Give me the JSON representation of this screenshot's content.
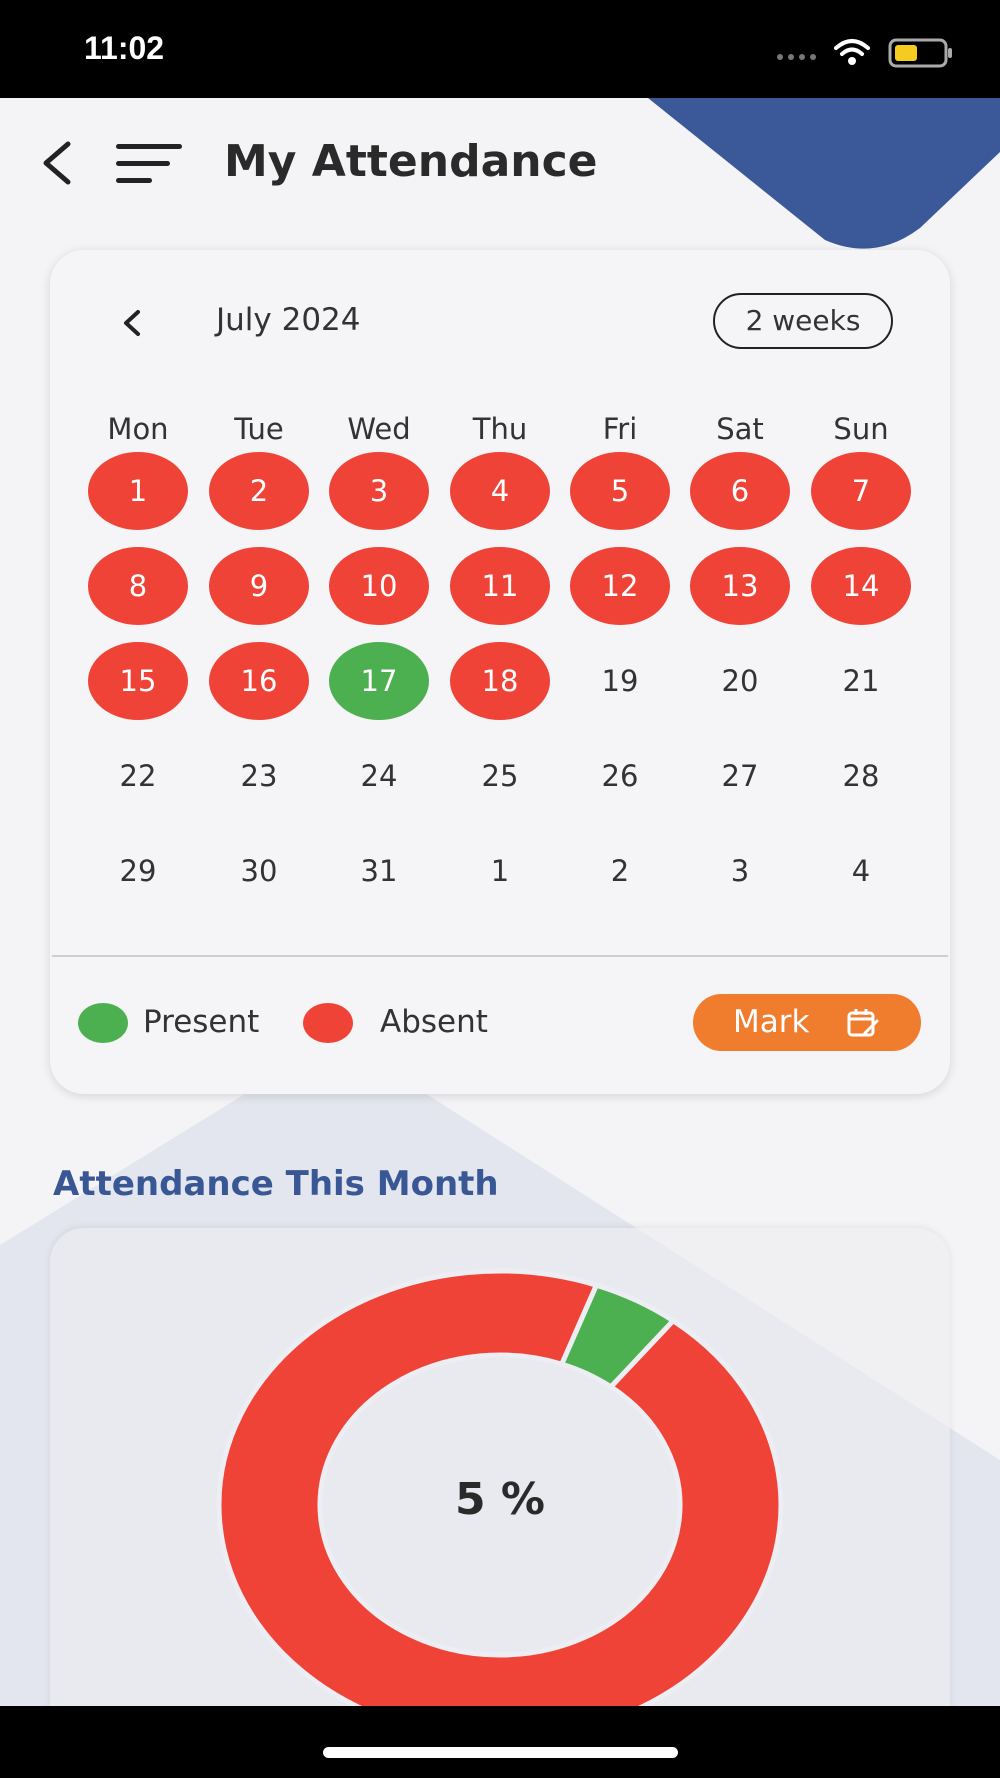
{
  "status_bar": {
    "time": "11:02"
  },
  "header": {
    "title": "My Attendance"
  },
  "calendar": {
    "month_label": "July 2024",
    "range_toggle": "2 weeks",
    "weekdays": [
      "Mon",
      "Tue",
      "Wed",
      "Thu",
      "Fri",
      "Sat",
      "Sun"
    ],
    "weeks": [
      [
        {
          "day": "1",
          "status": "absent"
        },
        {
          "day": "2",
          "status": "absent"
        },
        {
          "day": "3",
          "status": "absent"
        },
        {
          "day": "4",
          "status": "absent"
        },
        {
          "day": "5",
          "status": "absent"
        },
        {
          "day": "6",
          "status": "absent"
        },
        {
          "day": "7",
          "status": "absent"
        }
      ],
      [
        {
          "day": "8",
          "status": "absent"
        },
        {
          "day": "9",
          "status": "absent"
        },
        {
          "day": "10",
          "status": "absent"
        },
        {
          "day": "11",
          "status": "absent"
        },
        {
          "day": "12",
          "status": "absent"
        },
        {
          "day": "13",
          "status": "absent"
        },
        {
          "day": "14",
          "status": "absent"
        }
      ],
      [
        {
          "day": "15",
          "status": "absent"
        },
        {
          "day": "16",
          "status": "absent"
        },
        {
          "day": "17",
          "status": "present"
        },
        {
          "day": "18",
          "status": "absent"
        },
        {
          "day": "19",
          "status": "none"
        },
        {
          "day": "20",
          "status": "none"
        },
        {
          "day": "21",
          "status": "none"
        }
      ],
      [
        {
          "day": "22",
          "status": "none"
        },
        {
          "day": "23",
          "status": "none"
        },
        {
          "day": "24",
          "status": "none"
        },
        {
          "day": "25",
          "status": "none"
        },
        {
          "day": "26",
          "status": "none"
        },
        {
          "day": "27",
          "status": "none"
        },
        {
          "day": "28",
          "status": "none"
        }
      ],
      [
        {
          "day": "29",
          "status": "none"
        },
        {
          "day": "30",
          "status": "none"
        },
        {
          "day": "31",
          "status": "none"
        },
        {
          "day": "1",
          "status": "none"
        },
        {
          "day": "2",
          "status": "none"
        },
        {
          "day": "3",
          "status": "none"
        },
        {
          "day": "4",
          "status": "none"
        }
      ]
    ],
    "legend": [
      {
        "label": "Present",
        "color": "#4caf50"
      },
      {
        "label": "Absent",
        "color": "#f04338"
      }
    ],
    "mark_label": "Mark"
  },
  "attendance_section": {
    "title": "Attendance This Month",
    "center_label": "5 %"
  },
  "chart_data": {
    "type": "pie",
    "slices": [
      {
        "name": "Present",
        "value": 5,
        "color": "#4caf50"
      },
      {
        "name": "Absent",
        "value": 95,
        "color": "#f04338"
      }
    ]
  },
  "colors": {
    "accent_blue": "#3a5795",
    "absent_red": "#f04338",
    "present_green": "#4caf50",
    "mark_orange": "#f07c2e"
  }
}
